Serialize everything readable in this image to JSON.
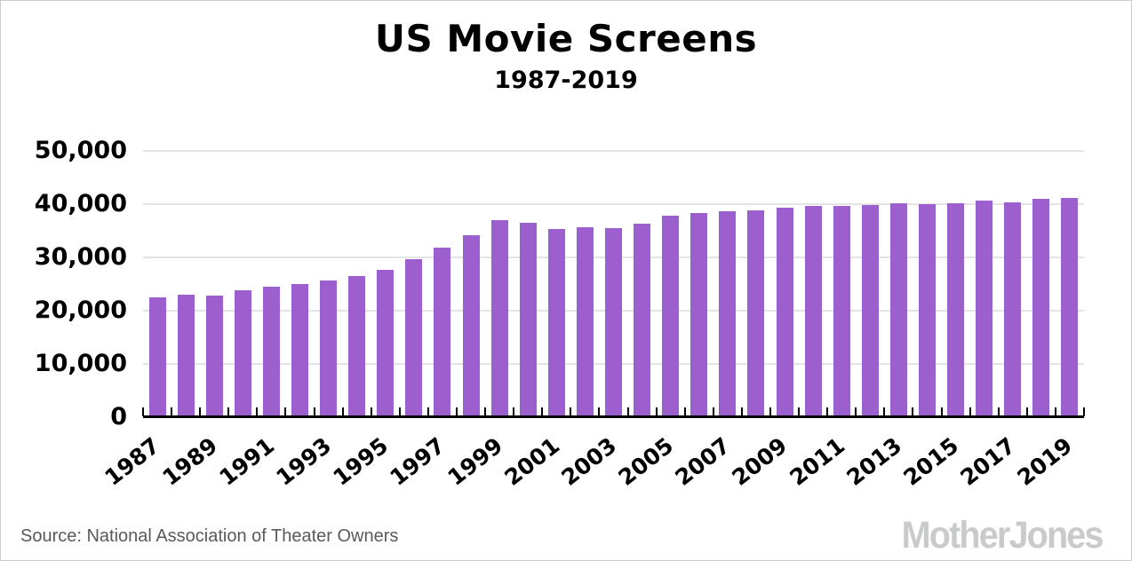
{
  "title": "US Movie Screens",
  "subtitle": "1987-2019",
  "source": "Source: National Association of Theater Owners",
  "branding": "MotherJones",
  "colors": {
    "bar": "#9c60ce",
    "gridline": "#e4e4e4",
    "axis": "#000000",
    "source_text": "#58595b",
    "logo": "#c9cacb",
    "border": "#cccccc"
  },
  "chart_data": {
    "type": "bar",
    "title": "US Movie Screens",
    "subtitle": "1987-2019",
    "xlabel": "",
    "ylabel": "",
    "ylim": [
      0,
      50000
    ],
    "grid": true,
    "legend": false,
    "y_tick_labels": [
      "50,000",
      "40,000",
      "30,000",
      "20,000",
      "10,000",
      "0"
    ],
    "x_tick_labels": [
      "1987",
      "1989",
      "1991",
      "1993",
      "1995",
      "1997",
      "1999",
      "2001",
      "2003",
      "2005",
      "2007",
      "2009",
      "2011",
      "2013",
      "2015",
      "2017",
      "2019"
    ],
    "categories": [
      1987,
      1988,
      1989,
      1990,
      1991,
      1992,
      1993,
      1994,
      1995,
      1996,
      1997,
      1998,
      1999,
      2000,
      2001,
      2002,
      2003,
      2004,
      2005,
      2006,
      2007,
      2008,
      2009,
      2010,
      2011,
      2012,
      2013,
      2014,
      2015,
      2016,
      2017,
      2018,
      2019
    ],
    "values": [
      22500,
      23000,
      22800,
      23800,
      24500,
      25000,
      25600,
      26500,
      27600,
      29700,
      31800,
      34100,
      37000,
      36500,
      35400,
      35700,
      35500,
      36400,
      37800,
      38400,
      38700,
      38900,
      39300,
      39600,
      39600,
      39800,
      40100,
      40000,
      40100,
      40700,
      40300,
      41000,
      41200
    ]
  }
}
